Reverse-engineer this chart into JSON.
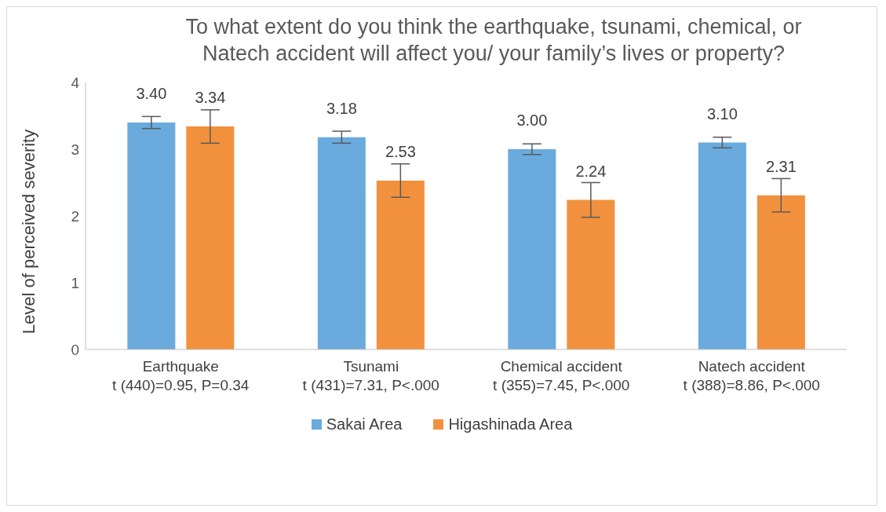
{
  "chart_data": {
    "type": "bar",
    "title": "To what extent do you think the earthquake, tsunami, chemical, or Natech accident will affect you/ your family’s lives or property?",
    "ylabel": "Level of perceived severity",
    "categories": [
      "Earthquake\nt (440)=0.95, P=0.34",
      "Tsunami\nt (431)=7.31, P<.000",
      "Chemical accident\nt (355)=7.45, P<.000",
      "Natech accident\nt (388)=8.86, P<.000"
    ],
    "series": [
      {
        "name": "Sakai Area",
        "color": "#6aaadd",
        "values": [
          3.4,
          3.18,
          3.0,
          3.1
        ],
        "errors": [
          0.09,
          0.09,
          0.08,
          0.08
        ],
        "value_labels": [
          "3.40",
          "3.18",
          "3.00",
          "3.10"
        ]
      },
      {
        "name": "Higashinada Area",
        "color": "#f2913d",
        "values": [
          3.34,
          2.53,
          2.24,
          2.31
        ],
        "errors": [
          0.25,
          0.25,
          0.26,
          0.25
        ],
        "value_labels": [
          "3.34",
          "2.53",
          "2.24",
          "2.31"
        ]
      }
    ],
    "ylim": [
      0,
      4
    ],
    "yticks": [
      0,
      1,
      2,
      3,
      4
    ],
    "legend": "bottom"
  }
}
